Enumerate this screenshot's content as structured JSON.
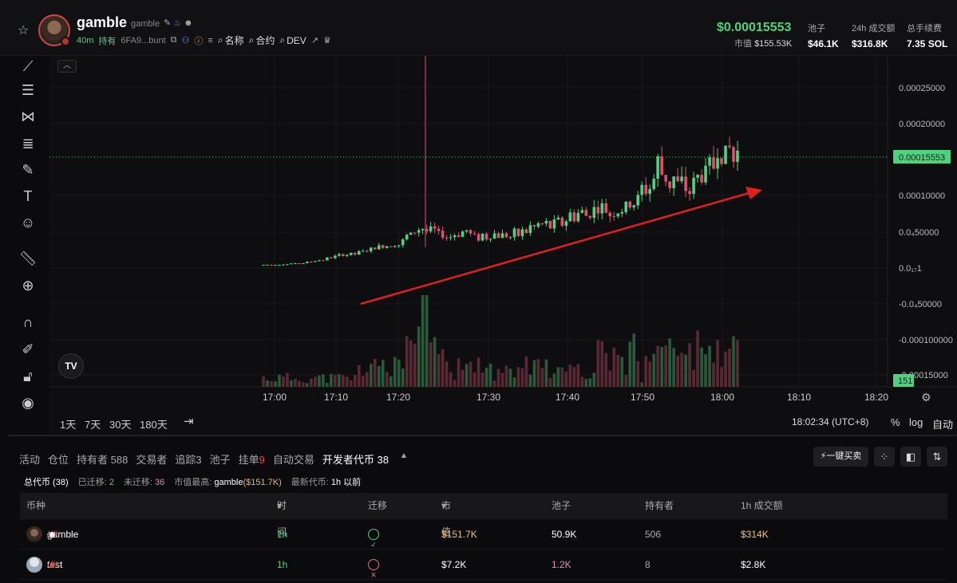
{
  "header": {
    "token_name": "gamble",
    "token_sub": "gamble",
    "age": "40m",
    "hold_label": "持有",
    "address": "6FA9...bunt",
    "links": [
      "名称",
      "合约",
      "DEV"
    ],
    "price": "$0.00015553",
    "mcap_label": "市值",
    "mcap_value": "$155.53K",
    "stats": [
      {
        "label": "池子",
        "value": "$46.1K"
      },
      {
        "label": "24h 成交额",
        "value": "$316.8K"
      },
      {
        "label": "总手续费",
        "value": "7.35 SOL"
      }
    ]
  },
  "toolbar": {
    "tools": [
      "line-tool-icon",
      "horizontal-lines-icon",
      "pattern-tool-icon",
      "fib-tool-icon",
      "brush-icon",
      "text-tool-icon",
      "emoji-icon",
      "ruler-icon",
      "zoom-in-icon",
      "magnet-icon",
      "lock-drawing-icon",
      "unlock-icon",
      "eye-icon"
    ]
  },
  "chart": {
    "y_axis_labels": [
      "0.00025000",
      "0.00020000",
      "0.00015553",
      "0.00010000",
      "0.0₄50000",
      "0.0₁₇1",
      "-0.0₄50000",
      "-0.000100000",
      "-0.00015000"
    ],
    "current_price_label": "0.00015553",
    "volume_badge": "151",
    "x_axis_labels": [
      "17:00",
      "17:10",
      "17:20",
      "17:30",
      "17:40",
      "17:50",
      "18:00",
      "18:10",
      "18:20"
    ],
    "periods": [
      "1天",
      "7天",
      "30天",
      "180天"
    ],
    "clock": "18:02:34 (UTC+8)",
    "options": [
      "%",
      "log",
      "自动"
    ]
  },
  "chart_data": {
    "type": "candlestick",
    "title": "gamble",
    "x_range": [
      "16:59",
      "18:03"
    ],
    "ylim": [
      -0.00015,
      0.00028
    ],
    "price_close_approx": [
      4e-06,
      5e-06,
      7e-06,
      1.2e-05,
      1.8e-05,
      2.2e-05,
      3e-05,
      3.5e-05,
      6e-05,
      4.5e-05,
      4.8e-05,
      4.2e-05,
      4.5e-05,
      5e-05,
      5.5e-05,
      6.5e-05,
      7.2e-05,
      8e-05,
      7.8e-05,
      9.5e-05,
      0.00014,
      0.00011,
      0.00012,
      0.00016,
      0.000155
    ],
    "last_price": 0.00015553,
    "annotation": "red trend arrow pointing up"
  },
  "tabs": {
    "items": [
      {
        "label": "活动",
        "active": false
      },
      {
        "label": "仓位",
        "active": false
      },
      {
        "label": "持有者 588",
        "active": false
      },
      {
        "label": "交易者",
        "active": false
      },
      {
        "label": "追踪3",
        "active": false
      },
      {
        "label": "池子",
        "active": false
      },
      {
        "label": "挂单",
        "badge": "9",
        "active": false
      },
      {
        "label": "自动交易",
        "active": false
      },
      {
        "label": "开发者代币 38",
        "active": true
      }
    ],
    "buy_button": "一键买卖"
  },
  "summary": {
    "total": "总代币 (38)",
    "migrated_label": "已迁移:",
    "migrated": "2",
    "unmigrated_label": "未迁移:",
    "unmigrated": "36",
    "top_mcap_label": "市值最高:",
    "top_mcap_name": "gamble",
    "top_mcap_value": "($151.7K)",
    "latest_label": "最新代币:",
    "latest_value": "1h 以前"
  },
  "table": {
    "headers": [
      "币种",
      "时间",
      "迁移",
      "市值",
      "池子",
      "持有者",
      "1h 成交额"
    ],
    "rows": [
      {
        "name": "gamble",
        "time": "1h",
        "migrated": true,
        "mcap": "$151.7K",
        "pool": "50.9K",
        "holders": "506",
        "volume": "$314K"
      },
      {
        "name": "test",
        "time": "1h",
        "migrated": false,
        "mcap": "$7.2K",
        "pool": "1.2K",
        "holders": "8",
        "volume": "$2.8K"
      }
    ]
  },
  "colors": {
    "up": "#4fd17f",
    "down": "#e0506a",
    "arrow": "#e02020",
    "background": "#0b0b0d"
  }
}
